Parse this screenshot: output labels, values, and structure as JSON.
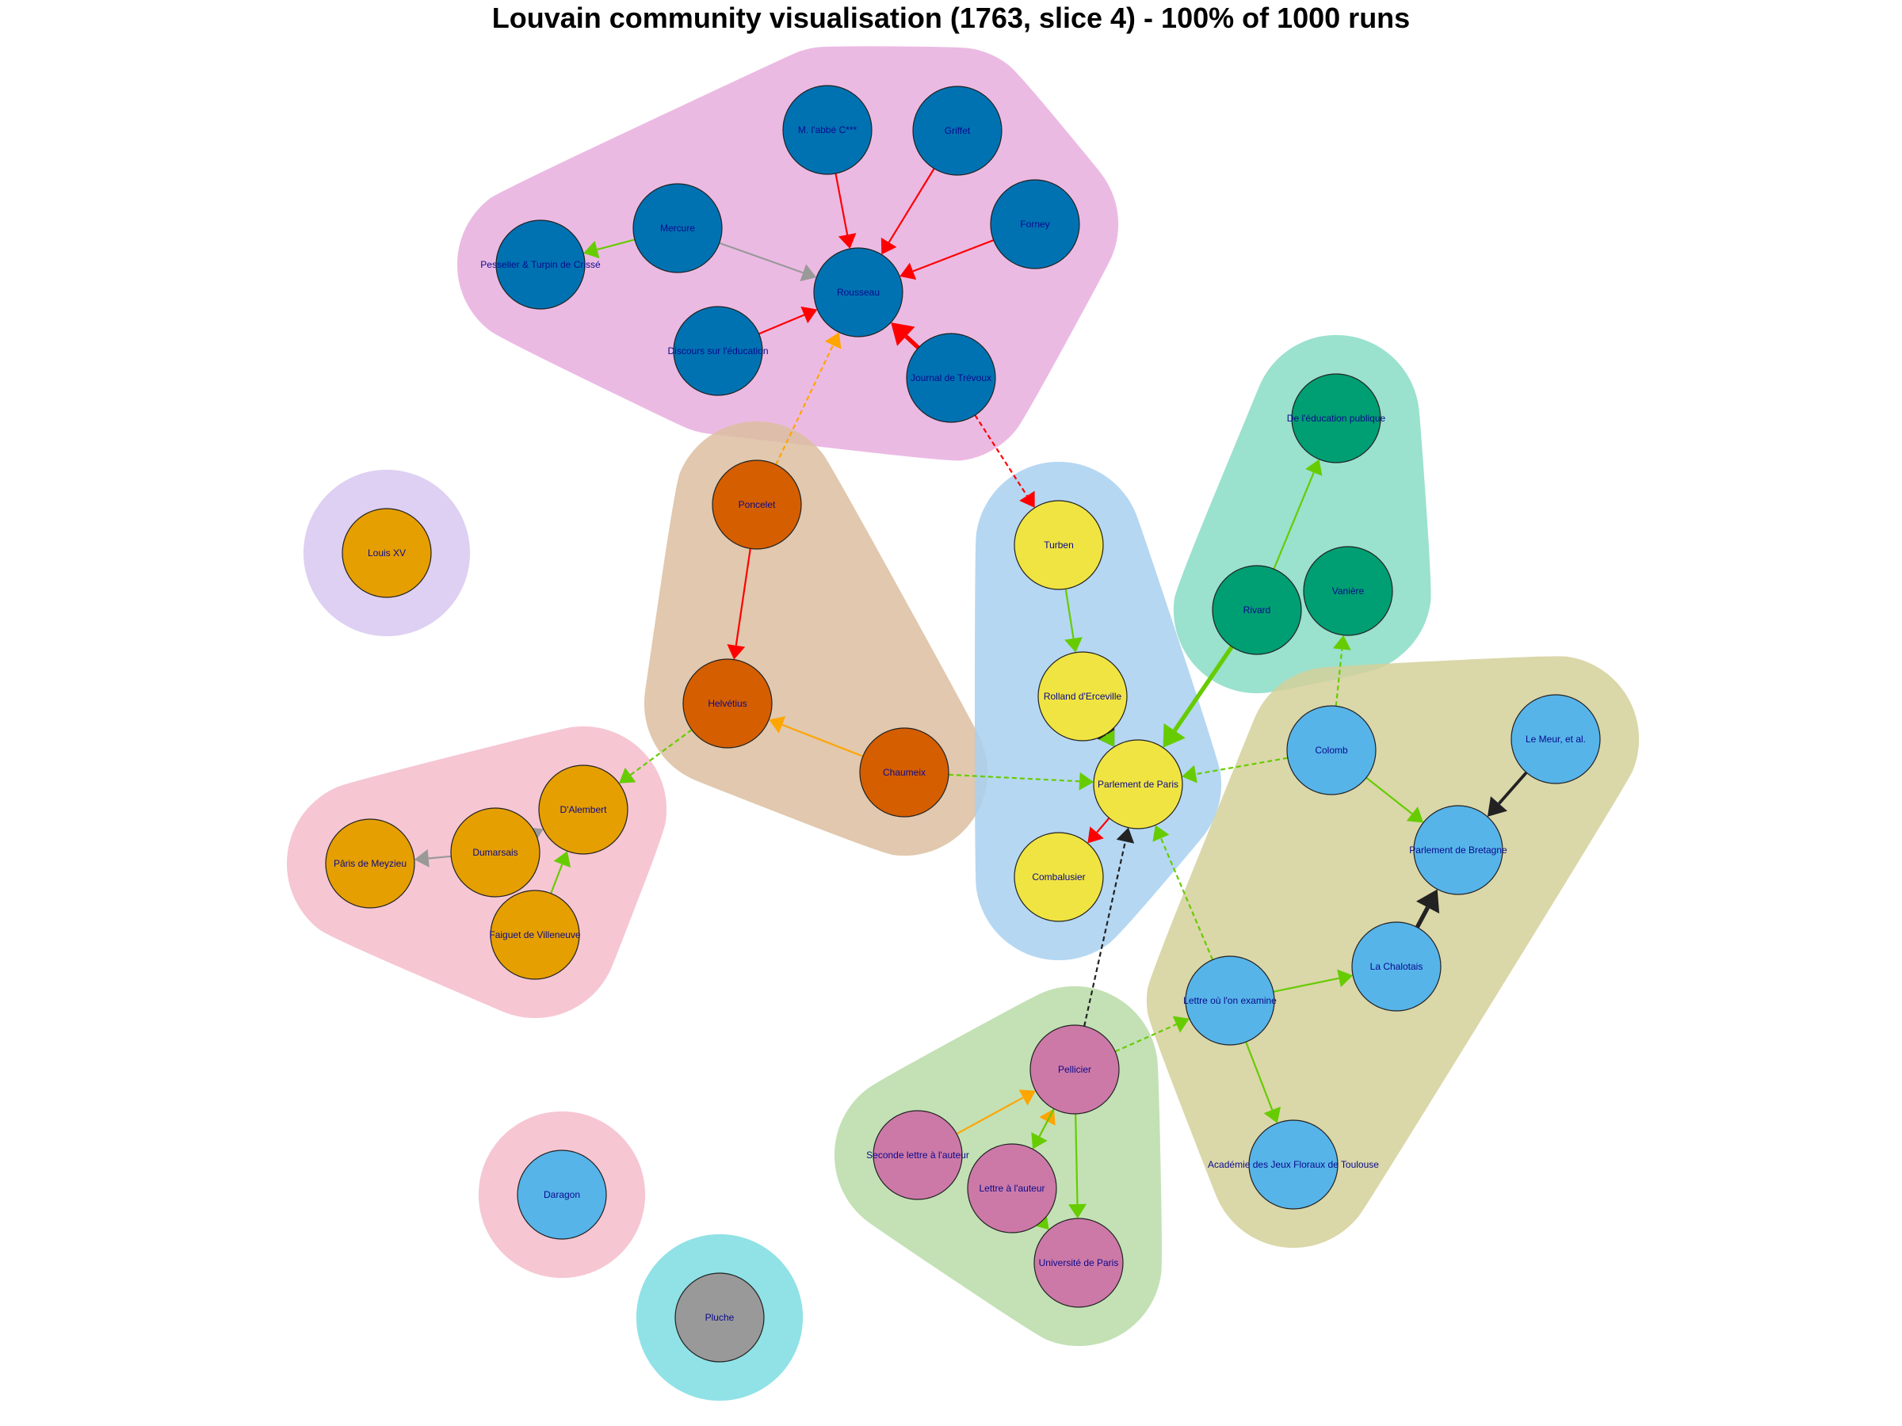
{
  "title": "Louvain community visualisation (1763, slice 4) - 100% of 1000 runs",
  "colors": {
    "edge_red": "#ff0000",
    "edge_green": "#66cc00",
    "edge_gray": "#999999",
    "edge_orange": "#ffa500",
    "edge_black": "#222222",
    "label": "#0a0a8c"
  },
  "communities": [
    {
      "id": "c1",
      "color": "#e8aede",
      "nodes": [
        "M. l'abbé C***",
        "Griffet",
        "Mercure",
        "Forney",
        "Pesselier & Turpin de Crissé",
        "Rousseau",
        "Discours sur l'éducation",
        "Journal de Trévoux"
      ]
    },
    {
      "id": "c2",
      "color": "#88dcc6",
      "nodes": [
        "De l'éducation publique",
        "Rivard",
        "Vanière"
      ]
    },
    {
      "id": "c3",
      "color": "#dcbea0",
      "nodes": [
        "Poncelet",
        "Helvétius",
        "Chaumeix"
      ]
    },
    {
      "id": "c4",
      "color": "#a8d0f0",
      "nodes": [
        "Turben",
        "Rolland d'Erceville",
        "Parlement de Paris",
        "Combalusier"
      ]
    },
    {
      "id": "c5",
      "color": "#d4d09a",
      "nodes": [
        "Colomb",
        "Le Meur, et al.",
        "Parlement de Bretagne",
        "La Chalotais",
        "Lettre où l'on examine",
        "Académie des Jeux Floraux de Toulouse"
      ]
    },
    {
      "id": "c6",
      "color": "#d8c8f0",
      "nodes": [
        "Louis XV"
      ]
    },
    {
      "id": "c7",
      "color": "#f4bccb",
      "nodes": [
        "D'Alembert",
        "Dumarsais",
        "Pâris de Meyzieu",
        "Faiguet de Villeneuve"
      ]
    },
    {
      "id": "c8",
      "color": "#b8dca8",
      "nodes": [
        "Pellicier",
        "Seconde lettre à l'auteur",
        "Lettre à l'auteur",
        "Université de Paris"
      ]
    },
    {
      "id": "c9",
      "color": "#f4bccb",
      "nodes": [
        "Daragon"
      ]
    },
    {
      "id": "c10",
      "color": "#7cdde2",
      "nodes": [
        "Pluche"
      ]
    }
  ],
  "nodes": [
    {
      "id": "abbe",
      "label": "M. l'abbé C***",
      "color": "#0072b2"
    },
    {
      "id": "griffet",
      "label": "Griffet",
      "color": "#0072b2"
    },
    {
      "id": "mercure",
      "label": "Mercure",
      "color": "#0072b2"
    },
    {
      "id": "forney",
      "label": "Forney",
      "color": "#0072b2"
    },
    {
      "id": "pesselier",
      "label": "Pesselier & Turpin de Crissé",
      "color": "#0072b2"
    },
    {
      "id": "rousseau",
      "label": "Rousseau",
      "color": "#0072b2"
    },
    {
      "id": "discours",
      "label": "Discours sur l'éducation",
      "color": "#0072b2"
    },
    {
      "id": "trevoux",
      "label": "Journal de Trévoux",
      "color": "#0072b2"
    },
    {
      "id": "deleduc",
      "label": "De l'éducation publique",
      "color": "#009e73"
    },
    {
      "id": "rivard",
      "label": "Rivard",
      "color": "#009e73"
    },
    {
      "id": "vaniere",
      "label": "Vanière",
      "color": "#009e73"
    },
    {
      "id": "poncelet",
      "label": "Poncelet",
      "color": "#d55e00"
    },
    {
      "id": "helvetius",
      "label": "Helvétius",
      "color": "#d55e00"
    },
    {
      "id": "chaumeix",
      "label": "Chaumeix",
      "color": "#d55e00"
    },
    {
      "id": "louisxv",
      "label": "Louis XV",
      "color": "#e69f00"
    },
    {
      "id": "turben",
      "label": "Turben",
      "color": "#f0e442"
    },
    {
      "id": "rolland",
      "label": "Rolland d'Erceville",
      "color": "#f0e442"
    },
    {
      "id": "parlparis",
      "label": "Parlement de Paris",
      "color": "#f0e442"
    },
    {
      "id": "combalusier",
      "label": "Combalusier",
      "color": "#f0e442"
    },
    {
      "id": "colomb",
      "label": "Colomb",
      "color": "#56b4e9"
    },
    {
      "id": "lemeur",
      "label": "Le Meur, et al.",
      "color": "#56b4e9"
    },
    {
      "id": "parlbret",
      "label": "Parlement de Bretagne",
      "color": "#56b4e9"
    },
    {
      "id": "chalotais",
      "label": "La Chalotais",
      "color": "#56b4e9"
    },
    {
      "id": "lettreexam",
      "label": "Lettre où l'on examine",
      "color": "#56b4e9"
    },
    {
      "id": "academie",
      "label": "Académie des Jeux Floraux de Toulouse",
      "color": "#56b4e9"
    },
    {
      "id": "dalembert",
      "label": "D'Alembert",
      "color": "#e69f00"
    },
    {
      "id": "dumarsais",
      "label": "Dumarsais",
      "color": "#e69f00"
    },
    {
      "id": "paris",
      "label": "Pâris de Meyzieu",
      "color": "#e69f00"
    },
    {
      "id": "faiguet",
      "label": "Faiguet de Villeneuve",
      "color": "#e69f00"
    },
    {
      "id": "pellicier",
      "label": "Pellicier",
      "color": "#cc79a7"
    },
    {
      "id": "seconde",
      "label": "Seconde lettre à l'auteur",
      "color": "#cc79a7"
    },
    {
      "id": "lettreauteur",
      "label": "Lettre à l'auteur",
      "color": "#cc79a7"
    },
    {
      "id": "univparis",
      "label": "Université de Paris",
      "color": "#cc79a7"
    },
    {
      "id": "daragon",
      "label": "Daragon",
      "color": "#56b4e9"
    },
    {
      "id": "pluche",
      "label": "Pluche",
      "color": "#999999"
    }
  ],
  "edges": [
    {
      "from": "abbe",
      "to": "rousseau",
      "color": "#ff0000",
      "style": "solid",
      "weight": 1
    },
    {
      "from": "griffet",
      "to": "rousseau",
      "color": "#ff0000",
      "style": "solid",
      "weight": 1
    },
    {
      "from": "forney",
      "to": "rousseau",
      "color": "#ff0000",
      "style": "solid",
      "weight": 1
    },
    {
      "from": "mercure",
      "to": "rousseau",
      "color": "#999999",
      "style": "solid",
      "weight": 1
    },
    {
      "from": "mercure",
      "to": "pesselier",
      "color": "#66cc00",
      "style": "solid",
      "weight": 1
    },
    {
      "from": "discours",
      "to": "rousseau",
      "color": "#ff0000",
      "style": "solid",
      "weight": 1
    },
    {
      "from": "trevoux",
      "to": "rousseau",
      "color": "#ff0000",
      "style": "solid",
      "weight": 3
    },
    {
      "from": "poncelet",
      "to": "rousseau",
      "color": "#ffa500",
      "style": "dashed",
      "weight": 1
    },
    {
      "from": "trevoux",
      "to": "turben",
      "color": "#ff0000",
      "style": "dashed",
      "weight": 1
    },
    {
      "from": "rivard",
      "to": "deleduc",
      "color": "#66cc00",
      "style": "solid",
      "weight": 1
    },
    {
      "from": "rivard",
      "to": "parlparis",
      "color": "#66cc00",
      "style": "solid",
      "weight": 3
    },
    {
      "from": "colomb",
      "to": "vaniere",
      "color": "#66cc00",
      "style": "dashed",
      "weight": 1
    },
    {
      "from": "poncelet",
      "to": "helvetius",
      "color": "#ff0000",
      "style": "solid",
      "weight": 1
    },
    {
      "from": "chaumeix",
      "to": "helvetius",
      "color": "#ffa500",
      "style": "solid",
      "weight": 1
    },
    {
      "from": "chaumeix",
      "to": "parlparis",
      "color": "#66cc00",
      "style": "dashed",
      "weight": 1
    },
    {
      "from": "helvetius",
      "to": "dalembert",
      "color": "#66cc00",
      "style": "dashed",
      "weight": 1
    },
    {
      "from": "turben",
      "to": "rolland",
      "color": "#66cc00",
      "style": "solid",
      "weight": 1
    },
    {
      "from": "rolland",
      "to": "parlparis",
      "color": "#222222",
      "style": "solid",
      "weight": 2
    },
    {
      "from": "rolland",
      "to": "parlparis",
      "color": "#66cc00",
      "style": "solid",
      "weight": 1
    },
    {
      "from": "parlparis",
      "to": "combalusier",
      "color": "#ff0000",
      "style": "solid",
      "weight": 1
    },
    {
      "from": "colomb",
      "to": "parlparis",
      "color": "#66cc00",
      "style": "dashed",
      "weight": 1
    },
    {
      "from": "colomb",
      "to": "parlbret",
      "color": "#66cc00",
      "style": "solid",
      "weight": 1
    },
    {
      "from": "lemeur",
      "to": "parlbret",
      "color": "#222222",
      "style": "solid",
      "weight": 2
    },
    {
      "from": "chalotais",
      "to": "parlbret",
      "color": "#222222",
      "style": "solid",
      "weight": 3
    },
    {
      "from": "lettreexam",
      "to": "chalotais",
      "color": "#66cc00",
      "style": "solid",
      "weight": 1
    },
    {
      "from": "lettreexam",
      "to": "academie",
      "color": "#66cc00",
      "style": "solid",
      "weight": 1
    },
    {
      "from": "lettreexam",
      "to": "parlparis",
      "color": "#66cc00",
      "style": "dashed",
      "weight": 1
    },
    {
      "from": "pellicier",
      "to": "parlparis",
      "color": "#222222",
      "style": "dashed",
      "weight": 1
    },
    {
      "from": "pellicier",
      "to": "lettreexam",
      "color": "#66cc00",
      "style": "dashed",
      "weight": 1
    },
    {
      "from": "seconde",
      "to": "pellicier",
      "color": "#ffa500",
      "style": "solid",
      "weight": 1
    },
    {
      "from": "lettreauteur",
      "to": "pellicier",
      "color": "#ffa500",
      "style": "solid",
      "weight": 1
    },
    {
      "from": "pellicier",
      "to": "lettreauteur",
      "color": "#66cc00",
      "style": "solid",
      "weight": 1
    },
    {
      "from": "pellicier",
      "to": "univparis",
      "color": "#66cc00",
      "style": "solid",
      "weight": 1
    },
    {
      "from": "lettreauteur",
      "to": "univparis",
      "color": "#66cc00",
      "style": "solid",
      "weight": 1
    },
    {
      "from": "dumarsais",
      "to": "paris",
      "color": "#999999",
      "style": "solid",
      "weight": 1
    },
    {
      "from": "dumarsais",
      "to": "dalembert",
      "color": "#999999",
      "style": "solid",
      "weight": 1
    },
    {
      "from": "faiguet",
      "to": "dalembert",
      "color": "#66cc00",
      "style": "solid",
      "weight": 1
    }
  ]
}
